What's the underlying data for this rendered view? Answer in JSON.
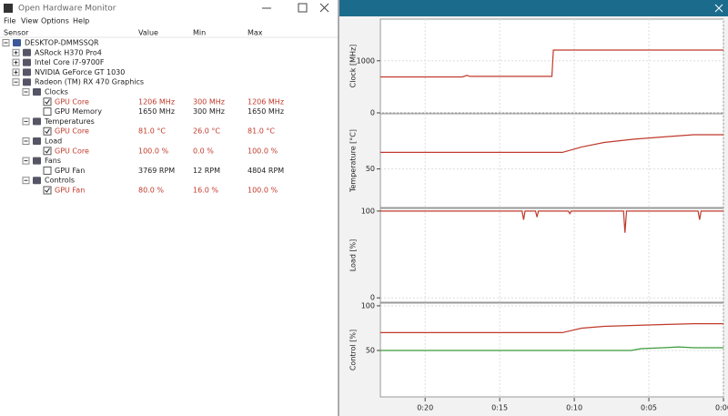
{
  "window": {
    "title": "Open Hardware Monitor",
    "menu": [
      "File",
      "View",
      "Options",
      "Help"
    ]
  },
  "tree": {
    "columns": [
      "Sensor",
      "Value",
      "Min",
      "Max"
    ],
    "highlight_color": "#c0392b",
    "rows": [
      {
        "label": "DESKTOP-DMMSSQR",
        "level": 0
      },
      {
        "label": "ASRock H370 Pro4",
        "level": 1,
        "collapsed": true
      },
      {
        "label": "Intel Core i7-9700F",
        "level": 1,
        "collapsed": true
      },
      {
        "label": "NVIDIA GeForce GT 1030",
        "level": 1,
        "collapsed": true
      },
      {
        "label": "Radeon (TM) RX 470 Graphics",
        "level": 1
      },
      {
        "label": "Clocks",
        "level": 2
      },
      {
        "label": "GPU Core",
        "level": 3,
        "checked": true,
        "highlight": true,
        "value": "1206 MHz",
        "min": "300 MHz",
        "max": "1206 MHz"
      },
      {
        "label": "GPU Memory",
        "level": 3,
        "checked": false,
        "value": "1650 MHz",
        "min": "300 MHz",
        "max": "1650 MHz"
      },
      {
        "label": "Temperatures",
        "level": 2
      },
      {
        "label": "GPU Core",
        "level": 3,
        "checked": true,
        "highlight": true,
        "value": "81.0 °C",
        "min": "26.0 °C",
        "max": "81.0 °C"
      },
      {
        "label": "Load",
        "level": 2
      },
      {
        "label": "GPU Core",
        "level": 3,
        "checked": true,
        "highlight": true,
        "value": "100.0 %",
        "min": "0.0 %",
        "max": "100.0 %"
      },
      {
        "label": "Fans",
        "level": 2
      },
      {
        "label": "GPU Fan",
        "level": 3,
        "checked": false,
        "value": "3769 RPM",
        "min": "12 RPM",
        "max": "4804 RPM"
      },
      {
        "label": "Controls",
        "level": 2
      },
      {
        "label": "GPU Fan",
        "level": 3,
        "checked": true,
        "highlight": true,
        "value": "80.0 %",
        "min": "16.0 %",
        "max": "100.0 %"
      }
    ]
  },
  "plot": {
    "xlim": [
      23,
      0
    ],
    "xticks": [
      {
        "value": 20,
        "label": "0:20"
      },
      {
        "value": 15,
        "label": "0:15"
      },
      {
        "value": 10,
        "label": "0:10"
      },
      {
        "value": 5,
        "label": "0:05"
      },
      {
        "value": 0,
        "label": "0:00"
      }
    ],
    "panels": [
      {
        "y_label": "Clock [MHz]",
        "ylim": [
          0,
          1800
        ],
        "yticks": [
          0,
          1000
        ],
        "series": [
          {
            "color": "#c0392b",
            "x": [
              23,
              17.5,
              17.2,
              17.0,
              13.0,
              11.5,
              11.4,
              0
            ],
            "values": [
              690,
              690,
              720,
              700,
              700,
              700,
              1206,
              1206
            ]
          }
        ]
      },
      {
        "y_label": "Temperature [°C]",
        "ylim": [
          15,
          100
        ],
        "yticks": [
          50
        ],
        "series": [
          {
            "color": "#c0392b",
            "x": [
              23,
              10.8,
              9.5,
              8,
              6,
              4,
              2,
              0
            ],
            "values": [
              65,
              65,
              70,
              74,
              77,
              79,
              81,
              81
            ]
          }
        ]
      },
      {
        "y_label": "Load [%]",
        "ylim": [
          -5,
          103
        ],
        "yticks": [
          0,
          100
        ],
        "series": [
          {
            "color": "#c0392b",
            "x": [
              23,
              13.5,
              13.4,
              13.3,
              12.6,
              12.5,
              12.4,
              10.4,
              10.3,
              10.2,
              6.7,
              6.6,
              6.5,
              1.7,
              1.6,
              1.5,
              0
            ],
            "values": [
              100,
              100,
              90,
              100,
              100,
              93,
              100,
              100,
              97,
              100,
              100,
              75,
              100,
              100,
              90,
              100,
              100
            ]
          }
        ]
      },
      {
        "y_label": "Control [%]",
        "ylim": [
          -2,
          103
        ],
        "yticks": [
          50,
          100
        ],
        "series": [
          {
            "color": "#c0392b",
            "x": [
              23,
              10.8,
              9.5,
              8,
              6,
              4,
              2,
              0
            ],
            "values": [
              70,
              70,
              75,
              77,
              78,
              79,
              80,
              80
            ]
          },
          {
            "color": "#3a9a3a",
            "x": [
              23,
              6.2,
              5.5,
              4,
              3,
              2,
              0
            ],
            "values": [
              50,
              50,
              52,
              53,
              54,
              53,
              53
            ]
          }
        ]
      }
    ]
  }
}
